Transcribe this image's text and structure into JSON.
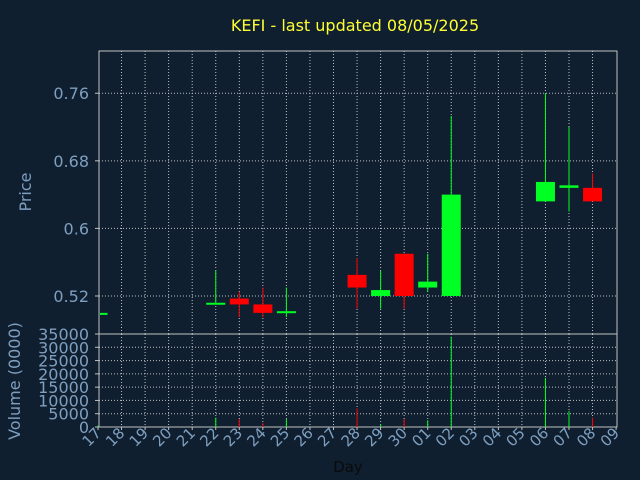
{
  "colors": {
    "background": "#0f1f30",
    "title": "#ffff33",
    "axis_text": "#7f9fbf",
    "grid": "#c0c0c0",
    "up": "#00ff22",
    "down": "#ff0000"
  },
  "chart_data": {
    "type": "candlestick",
    "title": "KEFI - last updated 08/05/2025",
    "xlabel": "Day",
    "price": {
      "ylabel": "Price",
      "ylim": [
        0.475,
        0.81
      ],
      "yticks": [
        "0.52",
        "0.6",
        "0.68",
        "0.76"
      ],
      "ytick_values": [
        0.52,
        0.6,
        0.68,
        0.76
      ]
    },
    "volume": {
      "ylabel": "Volume (0000)",
      "ylim": [
        0,
        35000
      ],
      "yticks": [
        "0",
        "5000",
        "10000",
        "15000",
        "20000",
        "25000",
        "30000",
        "35000"
      ],
      "ytick_values": [
        0,
        5000,
        10000,
        15000,
        20000,
        25000,
        30000,
        35000
      ]
    },
    "x_ticks": [
      "17",
      "18",
      "19",
      "20",
      "21",
      "22",
      "23",
      "24",
      "25",
      "26",
      "27",
      "28",
      "29",
      "30",
      "01",
      "02",
      "03",
      "04",
      "05",
      "06",
      "07",
      "08",
      "09"
    ],
    "grid": true,
    "candles": [
      {
        "day": "17",
        "open": 0.5,
        "high": 0.5,
        "low": 0.5,
        "close": 0.5,
        "volume": 500
      },
      {
        "day": "22",
        "open": 0.51,
        "high": 0.55,
        "low": 0.51,
        "close": 0.512,
        "volume": 3500
      },
      {
        "day": "23",
        "open": 0.517,
        "high": 0.525,
        "low": 0.495,
        "close": 0.51,
        "volume": 3000
      },
      {
        "day": "24",
        "open": 0.51,
        "high": 0.53,
        "low": 0.495,
        "close": 0.5,
        "volume": 1500
      },
      {
        "day": "25",
        "open": 0.502,
        "high": 0.53,
        "low": 0.495,
        "close": 0.502,
        "volume": 3000
      },
      {
        "day": "28",
        "open": 0.545,
        "high": 0.565,
        "low": 0.505,
        "close": 0.53,
        "volume": 7000
      },
      {
        "day": "29",
        "open": 0.52,
        "high": 0.55,
        "low": 0.505,
        "close": 0.527,
        "volume": 1000
      },
      {
        "day": "30",
        "open": 0.57,
        "high": 0.57,
        "low": 0.505,
        "close": 0.52,
        "volume": 3000
      },
      {
        "day": "01",
        "open": 0.53,
        "high": 0.57,
        "low": 0.525,
        "close": 0.537,
        "volume": 2500
      },
      {
        "day": "02",
        "open": 0.52,
        "high": 0.733,
        "low": 0.52,
        "close": 0.64,
        "volume": 34000
      },
      {
        "day": "06",
        "open": 0.632,
        "high": 0.76,
        "low": 0.632,
        "close": 0.655,
        "volume": 18500
      },
      {
        "day": "07",
        "open": 0.648,
        "high": 0.72,
        "low": 0.62,
        "close": 0.651,
        "volume": 6000
      },
      {
        "day": "08",
        "open": 0.648,
        "high": 0.665,
        "low": 0.632,
        "close": 0.632,
        "volume": 3500
      }
    ]
  }
}
